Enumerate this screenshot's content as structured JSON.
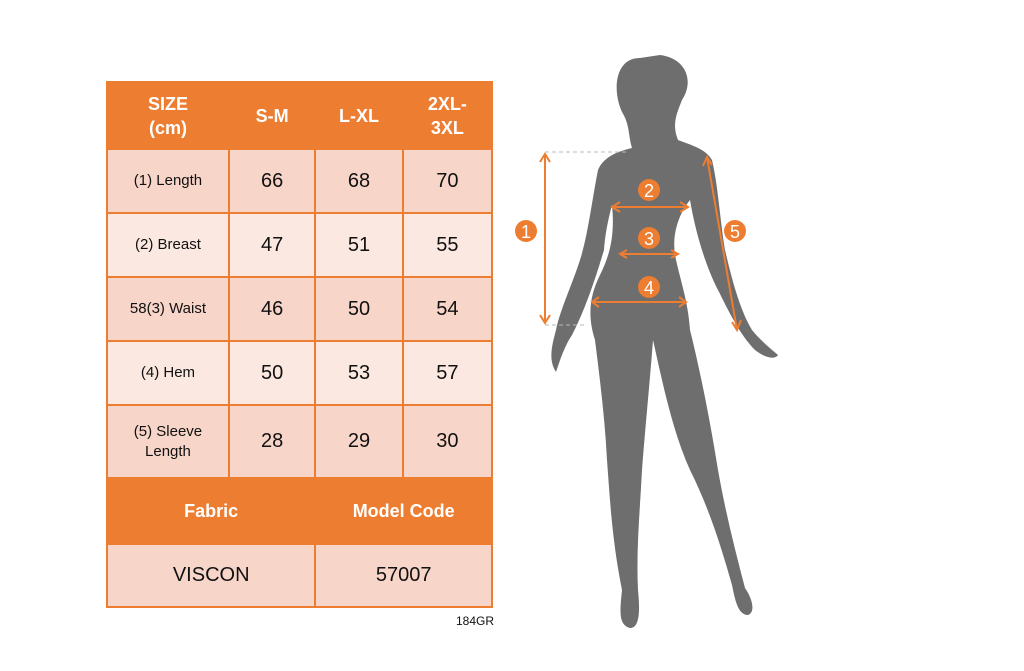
{
  "table": {
    "headers": [
      "SIZE (cm)",
      "S-M",
      "L-XL",
      "2XL-3XL"
    ],
    "header_lines": [
      [
        "SIZE",
        "(cm)"
      ],
      [
        "S-M"
      ],
      [
        "L-XL"
      ],
      [
        "2XL-",
        "3XL"
      ]
    ],
    "rows": [
      {
        "label": "(1) Length",
        "values": [
          "66",
          "68",
          "70"
        ]
      },
      {
        "label": "(2) Breast",
        "values": [
          "47",
          "51",
          "55"
        ]
      },
      {
        "label": "58(3) Waist",
        "values": [
          "46",
          "50",
          "54"
        ]
      },
      {
        "label": "(4) Hem",
        "values": [
          "50",
          "53",
          "57"
        ]
      },
      {
        "label_lines": [
          "(5) Sleeve",
          "Length"
        ],
        "label": "(5) Sleeve Length",
        "values": [
          "28",
          "29",
          "30"
        ]
      }
    ],
    "fabric_label": "Fabric",
    "model_code_label": "Model Code",
    "fabric_value": "VISCON",
    "model_code_value": "57007"
  },
  "product_code": "184GR",
  "figure": {
    "markers": [
      "1",
      "2",
      "3",
      "4",
      "5"
    ]
  },
  "colors": {
    "accent": "#ed7d31",
    "row_dark": "#f8d5c9",
    "row_light": "#fbe8e1",
    "silhouette": "#6e6e6e"
  }
}
